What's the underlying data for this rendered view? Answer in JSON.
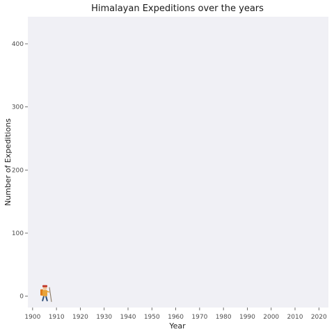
{
  "chart_data": {
    "type": "line",
    "title": "Himalayan Expeditions over the years",
    "xlabel": "Year",
    "ylabel": "Number of Expeditions",
    "xlim": [
      1898,
      2024
    ],
    "ylim": [
      -18,
      443
    ],
    "x_ticks": [
      1900,
      1910,
      1920,
      1930,
      1940,
      1950,
      1960,
      1970,
      1980,
      1990,
      2000,
      2010,
      2020
    ],
    "y_ticks": [
      0,
      100,
      200,
      300,
      400
    ],
    "grid": false,
    "legend": "none",
    "series": [
      {
        "values": [
          {
            "x": 1905,
            "y": 1
          }
        ]
      }
    ],
    "marker_icon": "climber-icon",
    "colors": {
      "panel_background": "#f0f0f5",
      "page_background": "#ffffff",
      "text": "#1a1a1a",
      "tick_text": "#4d4d4d"
    }
  }
}
